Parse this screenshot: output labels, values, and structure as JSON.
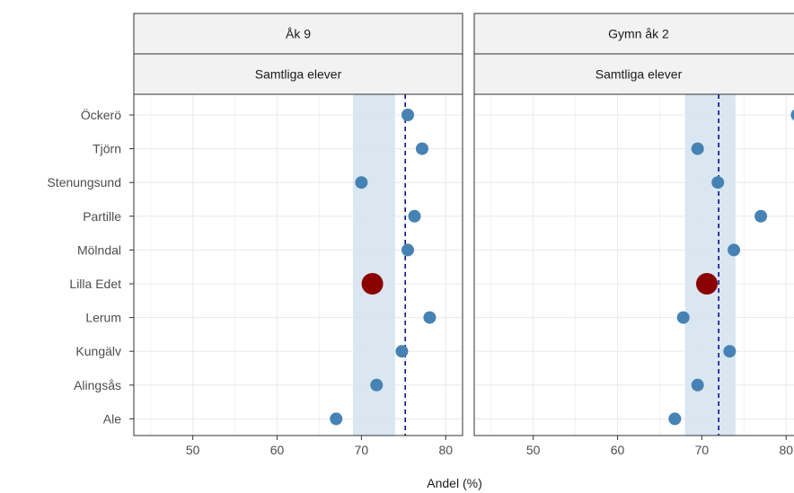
{
  "chart_data": {
    "type": "scatter",
    "xlabel": "Andel (%)",
    "ylabel": "",
    "xlim": [
      43,
      82
    ],
    "x_ticks": [
      50,
      60,
      70,
      80
    ],
    "x_tick_labels": [
      "50",
      "60",
      "70",
      "80"
    ],
    "grid": true,
    "categories": [
      "Öckerö",
      "Tjörn",
      "Stenungsund",
      "Partille",
      "Mölndal",
      "Lilla Edet",
      "Lerum",
      "Kungälv",
      "Alingsås",
      "Ale"
    ],
    "highlight_category": "Lilla Edet",
    "colors": {
      "point": "#4682b4",
      "highlight": "#8b0000",
      "band": "#d6e4f0",
      "reference_line": "#00008b"
    },
    "panels": [
      {
        "facet_top": "Åk 9",
        "facet_sub": "Samtliga elever",
        "band": [
          69,
          74
        ],
        "reference_line": 75.2,
        "values": [
          75.5,
          77.2,
          70.0,
          76.3,
          75.5,
          71.3,
          78.1,
          74.8,
          71.8,
          67.0
        ]
      },
      {
        "facet_top": "Gymn åk 2",
        "facet_sub": "Samtliga elever",
        "band": [
          68,
          74
        ],
        "reference_line": 72.0,
        "values": [
          81.3,
          69.5,
          71.9,
          77.0,
          73.8,
          70.6,
          67.8,
          73.3,
          69.5,
          66.8
        ]
      }
    ]
  }
}
